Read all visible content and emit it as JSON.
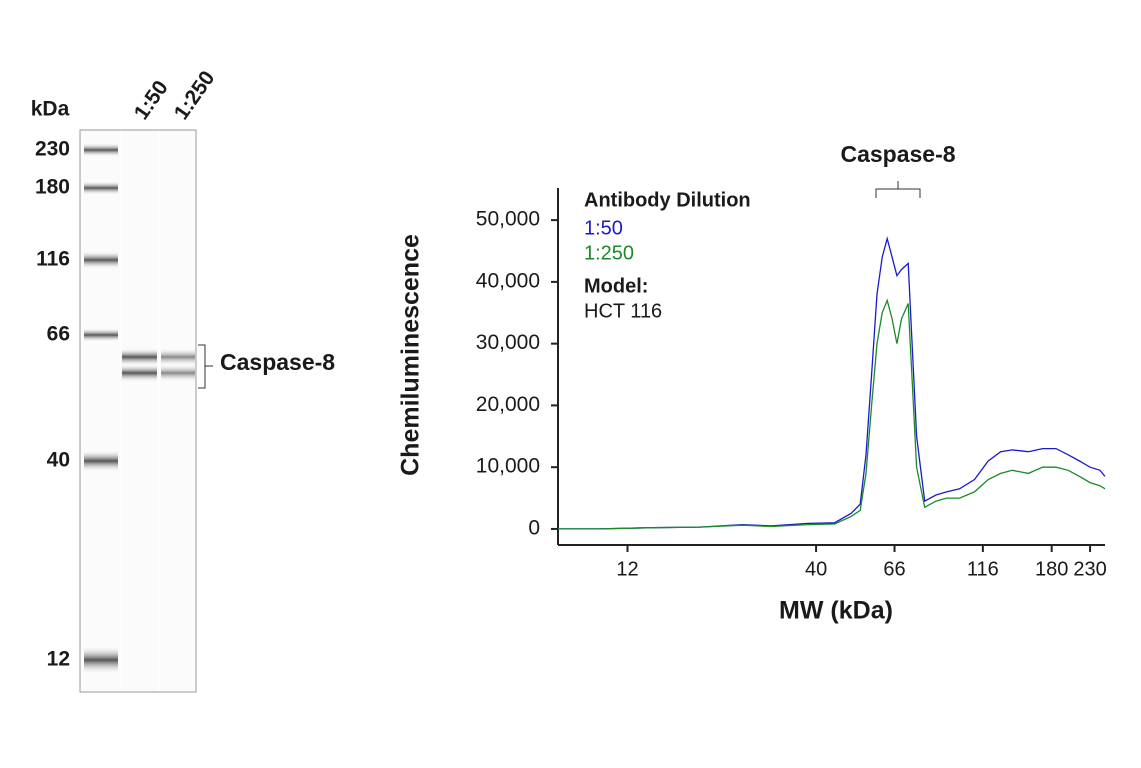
{
  "gel": {
    "unit_label": "kDa",
    "lanes": [
      "1:50",
      "1:250"
    ],
    "markers": [
      "230",
      "180",
      "116",
      "66",
      "40",
      "12"
    ],
    "band_label": "Caspase-8"
  },
  "chart_data": {
    "type": "line",
    "xlabel": "MW (kDa)",
    "ylabel": "Chemiluminescence",
    "annotation": "Caspase-8",
    "legend_title": "Antibody Dilution",
    "model_label": "Model:",
    "model": "HCT 116",
    "xscale": "log",
    "x": [
      7.7,
      10,
      14,
      19,
      25,
      30,
      38,
      45,
      50,
      53,
      55,
      57,
      59,
      61,
      63,
      65,
      67,
      69,
      72,
      76,
      80,
      86,
      92,
      100,
      110,
      120,
      130,
      140,
      155,
      170,
      185,
      200,
      215,
      230,
      245,
      253
    ],
    "series": [
      {
        "name": "1:50",
        "color": "#1a1acc",
        "values": [
          0,
          0,
          200,
          300,
          700,
          500,
          900,
          1000,
          2500,
          4000,
          12000,
          25000,
          38000,
          44000,
          47000,
          44000,
          41000,
          42000,
          43000,
          15000,
          4500,
          5500,
          6000,
          6500,
          8000,
          11000,
          12500,
          12800,
          12500,
          13000,
          13000,
          12000,
          11000,
          10000,
          9500,
          8500
        ]
      },
      {
        "name": "1:250",
        "color": "#1a8a2a",
        "values": [
          0,
          0,
          200,
          300,
          600,
          400,
          700,
          800,
          2000,
          3000,
          9000,
          20000,
          30000,
          35000,
          37000,
          34000,
          30000,
          34000,
          36500,
          10000,
          3500,
          4500,
          5000,
          5000,
          6000,
          8000,
          9000,
          9500,
          9000,
          10000,
          10000,
          9500,
          8500,
          7500,
          7000,
          6500
        ]
      }
    ],
    "xlim": [
      7.7,
      253
    ],
    "xticks": [
      12,
      40,
      66,
      116,
      180,
      230
    ],
    "ylim": [
      -2600,
      55200
    ],
    "yticks": [
      0,
      {
        "value": 10000,
        "label": "10,000"
      },
      {
        "value": 20000,
        "label": "20,000"
      },
      {
        "value": 30000,
        "label": "30,000"
      },
      {
        "value": 40000,
        "label": "40,000"
      },
      {
        "value": 50000,
        "label": "50,000"
      }
    ]
  }
}
